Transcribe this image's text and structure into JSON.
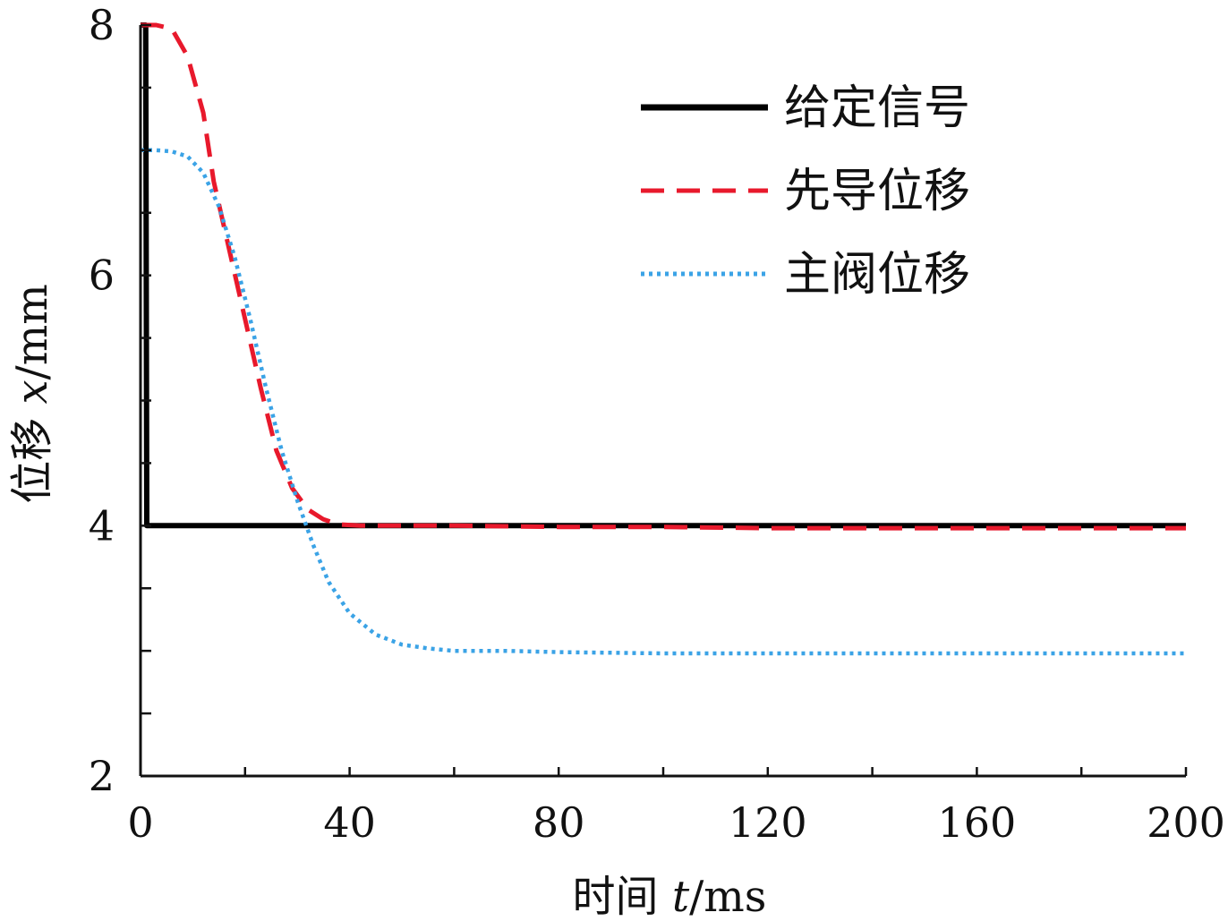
{
  "chart_data": {
    "type": "line",
    "title": "",
    "xlabel_prefix": "时间 ",
    "xlabel_var": "t",
    "xlabel_unit": "/ms",
    "ylabel_prefix": "位移 ",
    "ylabel_var": "x",
    "ylabel_unit": "/mm",
    "xlim": [
      0,
      200
    ],
    "ylim": [
      2,
      8
    ],
    "x_ticks": [
      0,
      40,
      80,
      120,
      160,
      200
    ],
    "y_ticks": [
      2,
      4,
      6,
      8
    ],
    "x_tick_labels": [
      "0",
      "40",
      "80",
      "120",
      "160",
      "200"
    ],
    "y_tick_labels": [
      "2",
      "4",
      "6",
      "8"
    ],
    "grid": false,
    "legend_position": "top-right",
    "series": [
      {
        "name": "给定信号",
        "style": "solid",
        "color": "#000000",
        "x": [
          0,
          1,
          1.2,
          200
        ],
        "y": [
          8,
          8,
          4,
          4
        ]
      },
      {
        "name": "先导位移",
        "style": "dashed",
        "color": "#e8192c",
        "x": [
          0,
          3,
          6,
          9,
          12,
          14,
          17,
          20,
          23,
          26,
          29,
          32,
          35,
          38,
          42,
          50,
          60,
          80,
          100,
          120,
          140,
          160,
          180,
          200
        ],
        "y": [
          8,
          8,
          7.97,
          7.75,
          7.3,
          6.75,
          6.2,
          5.65,
          5.1,
          4.6,
          4.3,
          4.13,
          4.05,
          4.01,
          4.0,
          4.0,
          4.0,
          3.99,
          3.99,
          3.98,
          3.98,
          3.98,
          3.98,
          3.98
        ]
      },
      {
        "name": "主阀位移",
        "style": "dotted",
        "color": "#3ba3e6",
        "x": [
          0,
          3,
          6,
          9,
          12,
          15,
          18,
          21,
          24,
          27,
          30,
          33,
          36,
          40,
          45,
          50,
          55,
          60,
          70,
          80,
          100,
          120,
          150,
          200
        ],
        "y": [
          7,
          7,
          6.99,
          6.95,
          6.82,
          6.55,
          6.15,
          5.65,
          5.1,
          4.6,
          4.2,
          3.85,
          3.55,
          3.3,
          3.13,
          3.05,
          3.02,
          3.0,
          3.0,
          2.99,
          2.98,
          2.98,
          2.98,
          2.98
        ]
      }
    ]
  }
}
